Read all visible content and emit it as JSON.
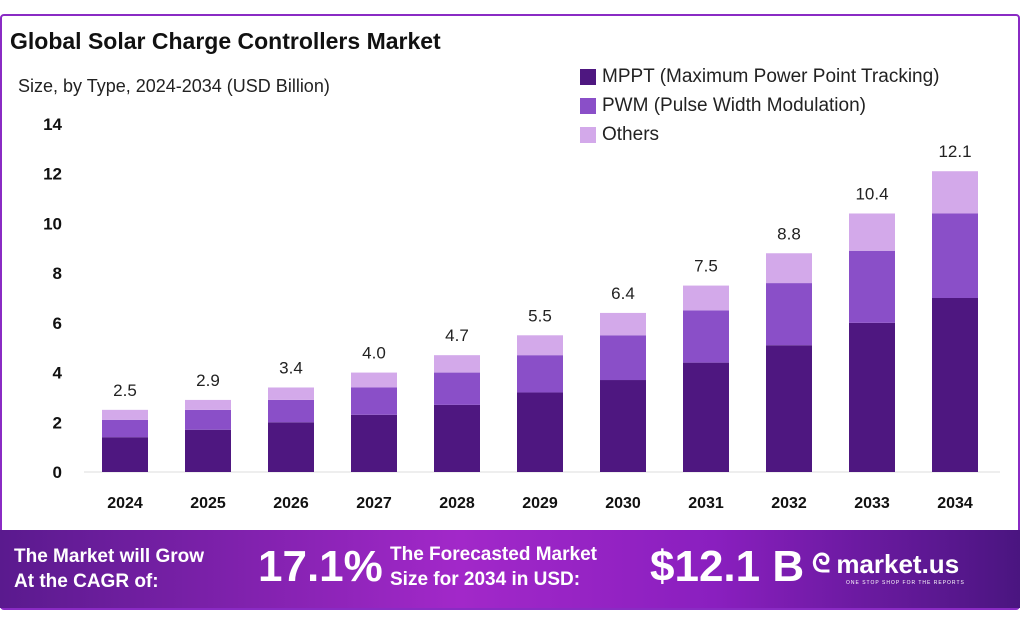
{
  "chart_data": {
    "type": "bar",
    "stacked": true,
    "title": "Global Solar Charge Controllers Market",
    "subtitle": "Size, by Type, 2024-2034 (USD Billion)",
    "xlabel": "",
    "ylabel": "",
    "ylim": [
      0,
      14
    ],
    "yticks": [
      "0",
      "2",
      "4",
      "6",
      "8",
      "10",
      "12",
      "14"
    ],
    "grid": false,
    "legend_position": "top-right",
    "categories": [
      "2024",
      "2025",
      "2026",
      "2027",
      "2028",
      "2029",
      "2030",
      "2031",
      "2032",
      "2033",
      "2034"
    ],
    "series": [
      {
        "name": "MPPT (Maximum Power Point Tracking)",
        "color": "#4e1780",
        "values": [
          1.4,
          1.7,
          2.0,
          2.3,
          2.7,
          3.2,
          3.7,
          4.4,
          5.1,
          6.0,
          7.0
        ]
      },
      {
        "name": "PWM (Pulse Width Modulation)",
        "color": "#8a4fc8",
        "values": [
          0.7,
          0.8,
          0.9,
          1.1,
          1.3,
          1.5,
          1.8,
          2.1,
          2.5,
          2.9,
          3.4
        ]
      },
      {
        "name": "Others",
        "color": "#d3a9ea",
        "values": [
          0.4,
          0.4,
          0.5,
          0.6,
          0.7,
          0.8,
          0.9,
          1.0,
          1.2,
          1.5,
          1.7
        ]
      }
    ],
    "totals": [
      "2.5",
      "2.9",
      "3.4",
      "4.0",
      "4.7",
      "5.5",
      "6.4",
      "7.5",
      "8.8",
      "10.4",
      "12.1"
    ]
  },
  "footer": {
    "cagr_label_1": "The Market will Grow",
    "cagr_label_2": "At the CAGR of:",
    "cagr_value": "17.1%",
    "forecast_label_1": "The Forecasted Market",
    "forecast_label_2": "Size for 2034 in USD:",
    "forecast_value": "$12.1 B",
    "logo_name": "market.us",
    "logo_tagline": "ONE STOP SHOP FOR THE REPORTS"
  }
}
